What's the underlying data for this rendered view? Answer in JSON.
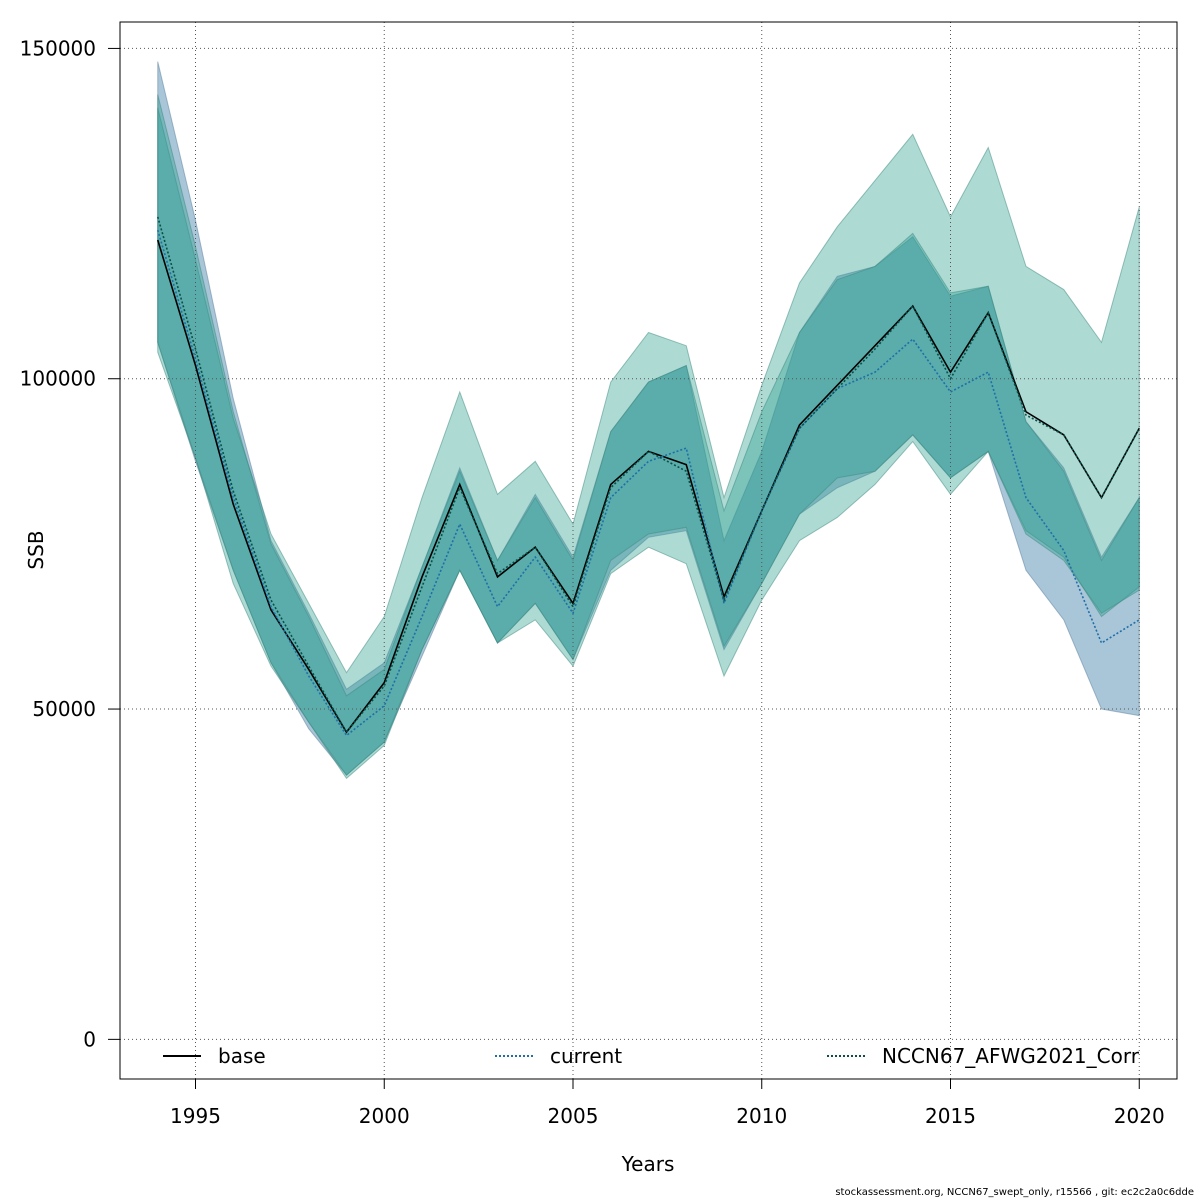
{
  "chart_data": {
    "type": "line",
    "xlabel": "Years",
    "ylabel": "SSB",
    "xlim": [
      1993,
      2021
    ],
    "ylim": [
      -6000,
      154000
    ],
    "x_ticks": [
      1995,
      2000,
      2005,
      2010,
      2015,
      2020
    ],
    "y_ticks": [
      0,
      50000,
      100000,
      150000
    ],
    "grid": true,
    "legend_position": "bottom",
    "x": [
      1994,
      1995,
      1996,
      1997,
      1998,
      1999,
      2000,
      2001,
      2002,
      2003,
      2004,
      2005,
      2006,
      2007,
      2008,
      2009,
      2010,
      2011,
      2012,
      2013,
      2014,
      2015,
      2016,
      2017,
      2018,
      2019,
      2020
    ],
    "series": [
      {
        "name": "base",
        "color": "#000000",
        "dash": "solid",
        "fill": "#2a9d8f",
        "values": [
          121000,
          102000,
          81000,
          65000,
          56000,
          46500,
          54000,
          70000,
          84000,
          70000,
          74500,
          66000,
          84000,
          89000,
          87000,
          67000,
          80000,
          93000,
          99000,
          105000,
          111000,
          101000,
          110000,
          95000,
          91500,
          82000,
          92500
        ],
        "lower": [
          104000,
          88000,
          69000,
          56500,
          48000,
          39500,
          44500,
          59000,
          71000,
          60000,
          63500,
          56500,
          70500,
          74500,
          72000,
          55000,
          66500,
          75500,
          79000,
          84000,
          90500,
          82500,
          89000,
          77000,
          73000,
          64000,
          68500
        ],
        "upper": [
          141000,
          118000,
          94000,
          76500,
          66000,
          55500,
          64000,
          82000,
          98000,
          82500,
          87500,
          78000,
          99500,
          107000,
          105000,
          82000,
          99000,
          114500,
          123000,
          130000,
          137000,
          124500,
          135000,
          117000,
          113500,
          105500,
          126000
        ]
      },
      {
        "name": "current",
        "color": "#1f6fa8",
        "dash": "dotted",
        "fill": "#6f9fbe",
        "values": [
          122500,
          103000,
          82000,
          65500,
          55000,
          46000,
          50500,
          64000,
          78000,
          65500,
          73000,
          64500,
          82000,
          87500,
          89500,
          66000,
          80000,
          92500,
          98500,
          101000,
          106000,
          98000,
          101000,
          82000,
          74000,
          60000,
          63500
        ],
        "lower": [
          105500,
          87500,
          71000,
          57000,
          47000,
          40000,
          45000,
          58000,
          71000,
          60000,
          66000,
          57500,
          71000,
          76000,
          77000,
          59000,
          69000,
          79500,
          83500,
          86000,
          91500,
          85000,
          89000,
          71000,
          63500,
          50000,
          49000
        ],
        "upper": [
          148000,
          124000,
          97000,
          75500,
          64500,
          53000,
          57000,
          71500,
          86500,
          72500,
          82500,
          73000,
          92000,
          99500,
          102000,
          75500,
          89000,
          107000,
          115500,
          117000,
          121500,
          112500,
          114000,
          93500,
          86500,
          73000,
          82000
        ]
      },
      {
        "name": "NCCN67_AFWG2021_Corr",
        "color": "#0b4f4a",
        "dash": "dotted",
        "fill": "#2a9d8f",
        "values": [
          124500,
          104500,
          83000,
          66500,
          56500,
          46500,
          53500,
          68500,
          83500,
          70500,
          74500,
          65500,
          83500,
          89000,
          86000,
          66500,
          80000,
          92500,
          98500,
          104500,
          111000,
          100000,
          110000,
          94500,
          91500,
          82000,
          92500
        ],
        "lower": [
          105500,
          88000,
          71000,
          57000,
          48000,
          40000,
          45000,
          59000,
          71000,
          60000,
          66000,
          57500,
          72500,
          76500,
          77500,
          59500,
          69000,
          79500,
          85000,
          86000,
          91500,
          85000,
          89000,
          76500,
          72500,
          64500,
          68000
        ],
        "upper": [
          143000,
          120000,
          95000,
          75000,
          64000,
          52000,
          56000,
          71500,
          86000,
          72500,
          82000,
          72500,
          92000,
          99500,
          102000,
          80000,
          95000,
          107000,
          115000,
          117000,
          122000,
          113000,
          114000,
          93500,
          86000,
          72500,
          82000
        ]
      }
    ]
  },
  "footer": "stockassessment.org, NCCN67_swept_only, r15566 , git: ec2c2a0c6dde"
}
